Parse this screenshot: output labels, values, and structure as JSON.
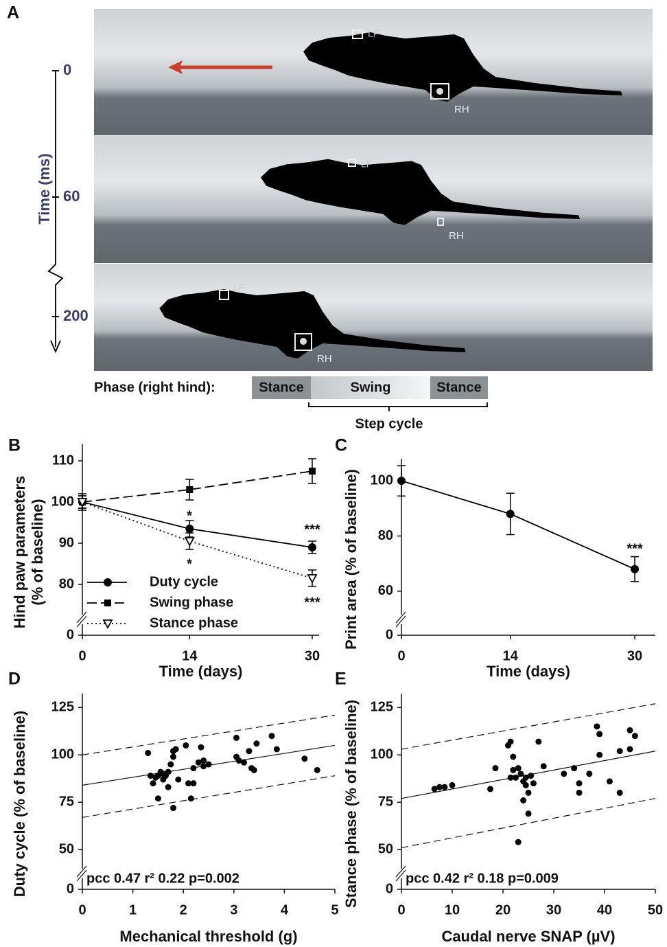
{
  "panel_a": {
    "panel": "A",
    "paw_labels": {
      "front": "LF",
      "hind": "RH"
    },
    "time_axis": {
      "label": "Time (ms)",
      "ticks": [
        0,
        60,
        200
      ]
    },
    "phase": {
      "label": "Phase (right hind):",
      "segments": [
        "Stance",
        "Swing",
        "Stance"
      ],
      "cycle": "Step cycle"
    }
  },
  "chart_data": [
    {
      "type": "line",
      "panel": "B",
      "x": [
        0,
        14,
        30
      ],
      "xlim": [
        0,
        30
      ],
      "xticks": [
        0,
        14,
        30
      ],
      "ylim": [
        0,
        112
      ],
      "y_break": [
        0,
        75
      ],
      "yticks": [
        0,
        80,
        90,
        100,
        110
      ],
      "x_label": "Time (days)",
      "y_label": [
        "Hind paw parameters",
        "(% of baseline)"
      ],
      "series": [
        {
          "name": "Duty cycle",
          "color": "#000000",
          "dash": "solid",
          "marker": "circle",
          "values": [
            100,
            93.5,
            89
          ],
          "errors": [
            1.5,
            2,
            1.5
          ]
        },
        {
          "name": "Swing phase",
          "color": "#000000",
          "dash": "dashed",
          "marker": "square",
          "values": [
            100,
            103,
            107.5
          ],
          "errors": [
            1.5,
            2.5,
            3
          ]
        },
        {
          "name": "Stance phase",
          "color": "#000000",
          "dash": "dotted",
          "marker": "triangle-open",
          "values": [
            100,
            90.5,
            81.5
          ],
          "errors": [
            2,
            2,
            2
          ]
        }
      ],
      "annotations": [
        "*",
        "***",
        "*",
        "***"
      ]
    },
    {
      "type": "line",
      "panel": "C",
      "x": [
        0,
        14,
        30
      ],
      "xlim": [
        0,
        30
      ],
      "xticks": [
        0,
        14,
        30
      ],
      "ylim": [
        0,
        105
      ],
      "y_break": [
        0,
        55
      ],
      "yticks": [
        0,
        60,
        80,
        100
      ],
      "x_label": "Time (days)",
      "y_label": [
        "Print area (% of baseline)"
      ],
      "series": [
        {
          "color": "#000000",
          "dash": "solid",
          "marker": "circle",
          "values": [
            100,
            88,
            68
          ],
          "errors": [
            5.5,
            7.5,
            4.5
          ]
        }
      ],
      "annotations": [
        "***"
      ]
    },
    {
      "type": "scatter",
      "panel": "D",
      "color": "#000000",
      "x": [
        1.3,
        1.35,
        1.4,
        1.45,
        1.5,
        1.5,
        1.55,
        1.6,
        1.6,
        1.65,
        1.7,
        1.7,
        1.75,
        1.8,
        1.8,
        1.85,
        1.8,
        1.9,
        2.05,
        2.1,
        2.15,
        2.2,
        2.2,
        2.3,
        2.35,
        2.4,
        2.4,
        2.5,
        3.05,
        3.05,
        3.1,
        3.2,
        3.3,
        3.35,
        3.4,
        3.45,
        3.75,
        3.85,
        4.4,
        4.65
      ],
      "values": [
        101,
        89,
        85,
        88,
        77,
        89,
        91,
        90,
        87,
        89,
        83,
        91,
        95,
        99,
        102,
        103,
        72,
        87,
        105,
        85,
        77,
        85,
        93,
        96,
        104,
        97,
        94,
        95,
        109,
        99,
        97,
        96,
        102,
        93,
        92,
        106,
        110,
        103,
        98,
        92
      ],
      "xlim": [
        0,
        5
      ],
      "xticks": [
        0,
        1,
        2,
        3,
        4,
        5
      ],
      "ylim": [
        0,
        128
      ],
      "y_break": [
        0,
        45
      ],
      "yticks": [
        0,
        50,
        75,
        100,
        125
      ],
      "x_label": "Mechanical threshold (g)",
      "y_label": [
        "Duty cycle (% of baseline)"
      ],
      "stats": "pcc 0.47  r² 0.22  p=0.002",
      "fit": {
        "x": [
          0,
          5
        ],
        "values": [
          84,
          105
        ]
      },
      "bands": [
        {
          "x": [
            0,
            5
          ],
          "values": [
            100,
            121
          ]
        },
        {
          "x": [
            0,
            5
          ],
          "values": [
            67,
            89
          ]
        }
      ]
    },
    {
      "type": "scatter",
      "panel": "E",
      "color": "#000000",
      "x": [
        6.5,
        7.5,
        8.5,
        10,
        17.5,
        18.5,
        21,
        21.5,
        21.5,
        22,
        22,
        22.5,
        23,
        23,
        23.5,
        24,
        24,
        24.5,
        24.5,
        25,
        25,
        25.5,
        26,
        27,
        28,
        32,
        34,
        35,
        35,
        37,
        38.5,
        39,
        39,
        41,
        43,
        43,
        45,
        45,
        46
      ],
      "values": [
        82,
        83,
        83,
        84,
        82,
        93,
        105,
        107,
        88,
        99,
        92,
        88,
        93,
        54,
        90,
        86,
        76,
        84,
        88,
        69,
        80,
        89,
        85,
        107,
        94,
        90,
        93,
        80,
        85,
        90,
        115,
        111,
        100,
        86,
        102,
        80,
        113,
        103,
        110
      ],
      "xlim": [
        0,
        50
      ],
      "xticks": [
        0,
        10,
        20,
        30,
        40,
        50
      ],
      "ylim": [
        0,
        128
      ],
      "y_break": [
        0,
        45
      ],
      "yticks": [
        0,
        50,
        75,
        100,
        125
      ],
      "x_label": "Caudal nerve SNAP (µV)",
      "y_label": [
        "Stance phase (% of baseline)"
      ],
      "stats": "pcc 0.42  r² 0.18  p=0.009",
      "fit": {
        "x": [
          0,
          50
        ],
        "values": [
          77,
          102
        ]
      },
      "bands": [
        {
          "x": [
            0,
            50
          ],
          "values": [
            103,
            127
          ]
        },
        {
          "x": [
            0,
            50
          ],
          "values": [
            51,
            77
          ]
        }
      ]
    }
  ]
}
